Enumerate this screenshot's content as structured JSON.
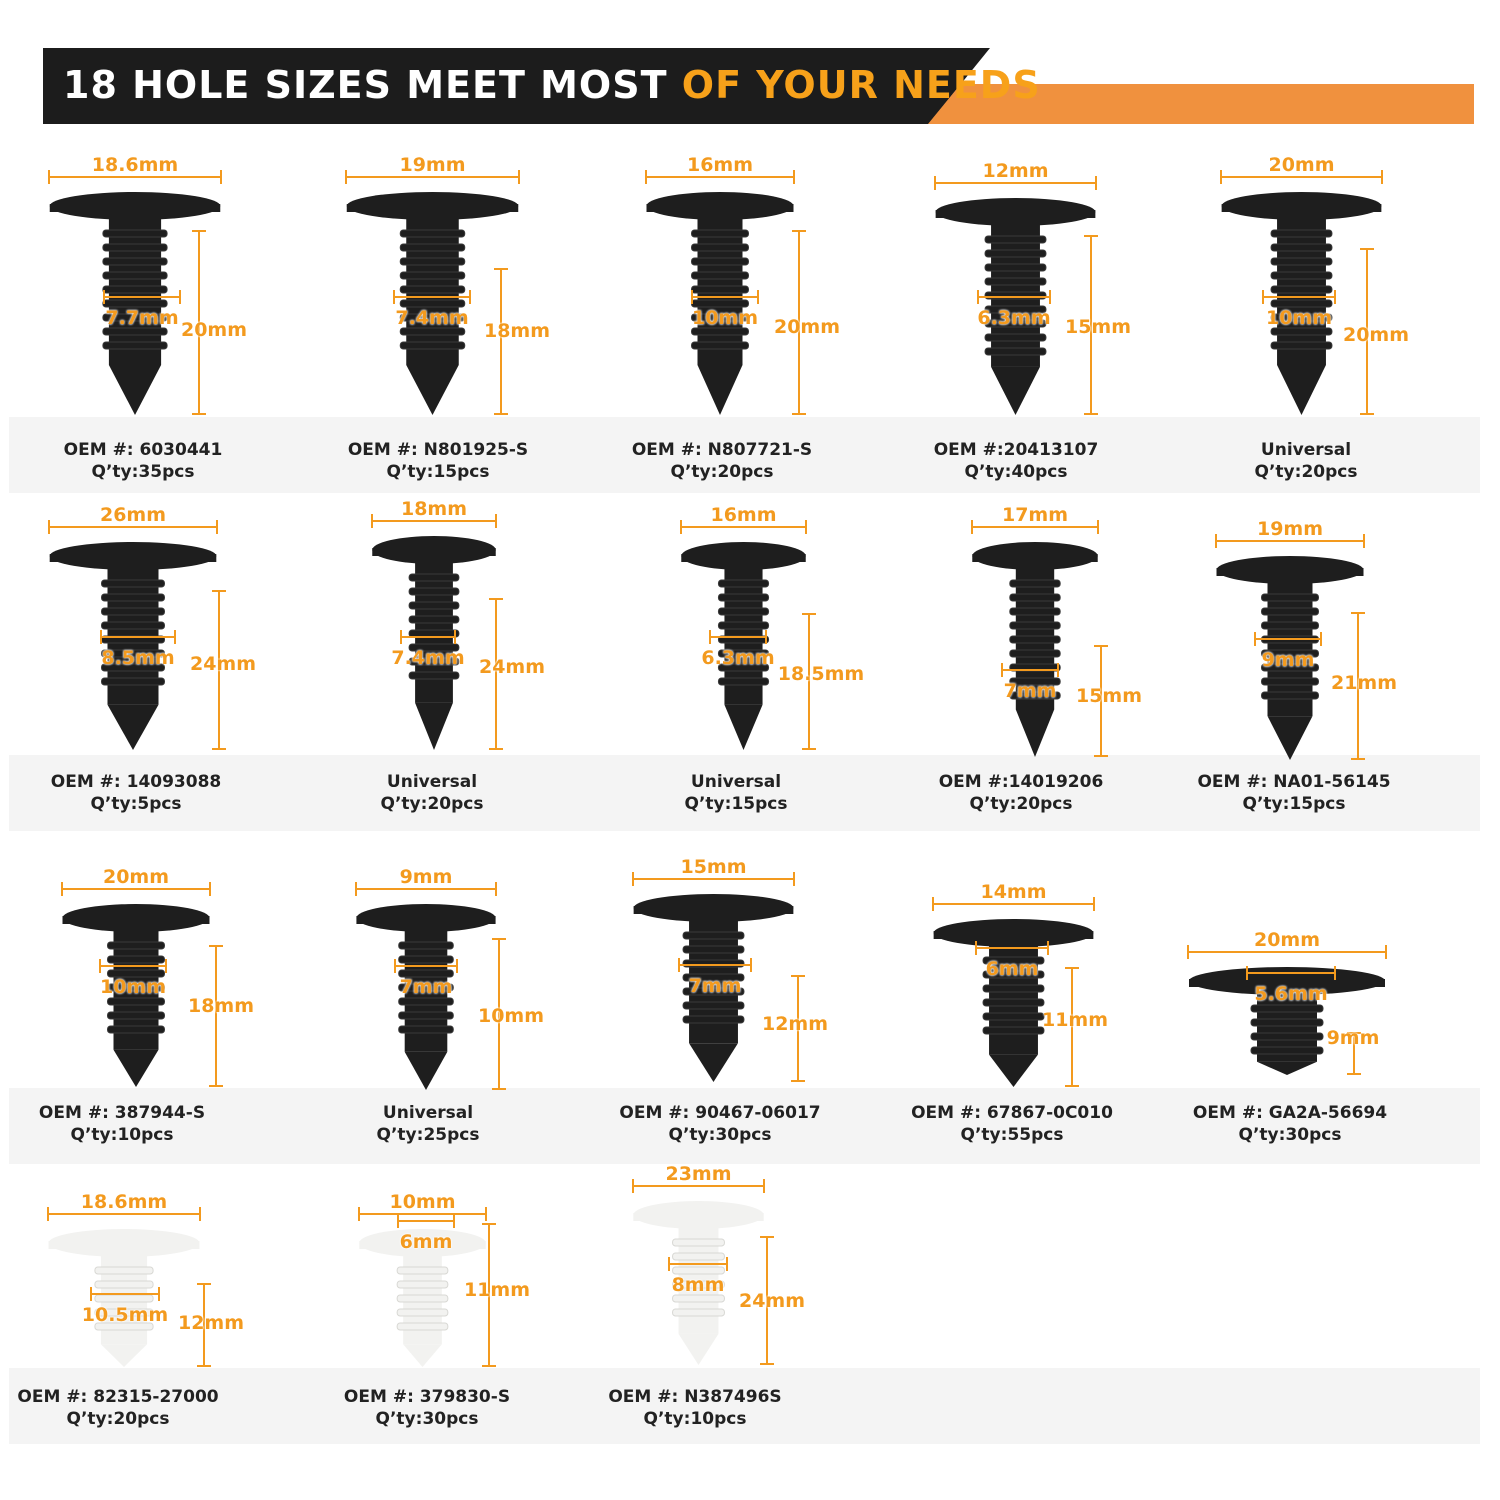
{
  "header": {
    "title_white": "18 HOLE SIZES MEET MOST ",
    "title_orange": "OF YOUR NEEDS"
  },
  "colors": {
    "accent": "#f39a1e",
    "header_bg": "#1c1c1c",
    "header_bar": "#f0913e",
    "clip_black": "#1e1e1e",
    "clip_white": "#f2f2f0",
    "band": "#f4f4f4"
  },
  "items": [
    {
      "width": "18.6mm",
      "hole": "7.7mm",
      "height": "20mm",
      "oem": "OEM #: 6030441",
      "qty": "Q’ty:35pcs",
      "color": "black"
    },
    {
      "width": "19mm",
      "hole": "7.4mm",
      "height": "18mm",
      "oem": "OEM #: N801925-S",
      "qty": "Q’ty:15pcs",
      "color": "black"
    },
    {
      "width": "16mm",
      "hole": "10mm",
      "height": "20mm",
      "oem": "OEM #: N807721-S",
      "qty": "Q’ty:20pcs",
      "color": "black"
    },
    {
      "width": "12mm",
      "hole": "6.3mm",
      "height": "15mm",
      "oem": "OEM #:20413107",
      "qty": "Q’ty:40pcs",
      "color": "black"
    },
    {
      "width": "20mm",
      "hole": "10mm",
      "height": "20mm",
      "oem": "Universal",
      "qty": "Q’ty:20pcs",
      "color": "black"
    },
    {
      "width": "26mm",
      "hole": "8.5mm",
      "height": "24mm",
      "oem": "OEM #: 14093088",
      "qty": "Q’ty:5pcs",
      "color": "black"
    },
    {
      "width": "18mm",
      "hole": "7.4mm",
      "height": "24mm",
      "oem": "Universal",
      "qty": "Q’ty:20pcs",
      "color": "black"
    },
    {
      "width": "16mm",
      "hole": "6.3mm",
      "height": "18.5mm",
      "oem": "Universal",
      "qty": "Q’ty:15pcs",
      "color": "black"
    },
    {
      "width": "17mm",
      "hole": "7mm",
      "height": "15mm",
      "oem": "OEM #:14019206",
      "qty": "Q’ty:20pcs",
      "color": "black"
    },
    {
      "width": "19mm",
      "hole": "9mm",
      "height": "21mm",
      "oem": "OEM #: NA01-56145",
      "qty": "Q’ty:15pcs",
      "color": "black"
    },
    {
      "width": "20mm",
      "hole": "10mm",
      "height": "18mm",
      "oem": "OEM #: 387944-S",
      "qty": "Q’ty:10pcs",
      "color": "black"
    },
    {
      "width": "9mm",
      "hole": "7mm",
      "height": "10mm",
      "oem": "Universal",
      "qty": "Q’ty:25pcs",
      "color": "black"
    },
    {
      "width": "15mm",
      "hole": "7mm",
      "height": "12mm",
      "oem": "OEM #: 90467-06017",
      "qty": "Q’ty:30pcs",
      "color": "black"
    },
    {
      "width": "14mm",
      "hole": "6mm",
      "height": "11mm",
      "oem": "OEM #: 67867-0C010",
      "qty": "Q’ty:55pcs",
      "color": "black"
    },
    {
      "width": "20mm",
      "hole": "5.6mm",
      "height": "9mm",
      "oem": "OEM #: GA2A-56694",
      "qty": "Q’ty:30pcs",
      "color": "black"
    },
    {
      "width": "18.6mm",
      "hole": "10.5mm",
      "height": "12mm",
      "oem": "OEM #: 82315-27000",
      "qty": "Q’ty:20pcs",
      "color": "white"
    },
    {
      "width": "10mm",
      "hole": "6mm",
      "height": "11mm",
      "oem": "OEM #: 379830-S",
      "qty": "Q’ty:30pcs",
      "color": "white"
    },
    {
      "width": "23mm",
      "hole": "8mm",
      "height": "24mm",
      "oem": "OEM #: N387496S",
      "qty": "Q’ty:10pcs",
      "color": "white"
    }
  ]
}
